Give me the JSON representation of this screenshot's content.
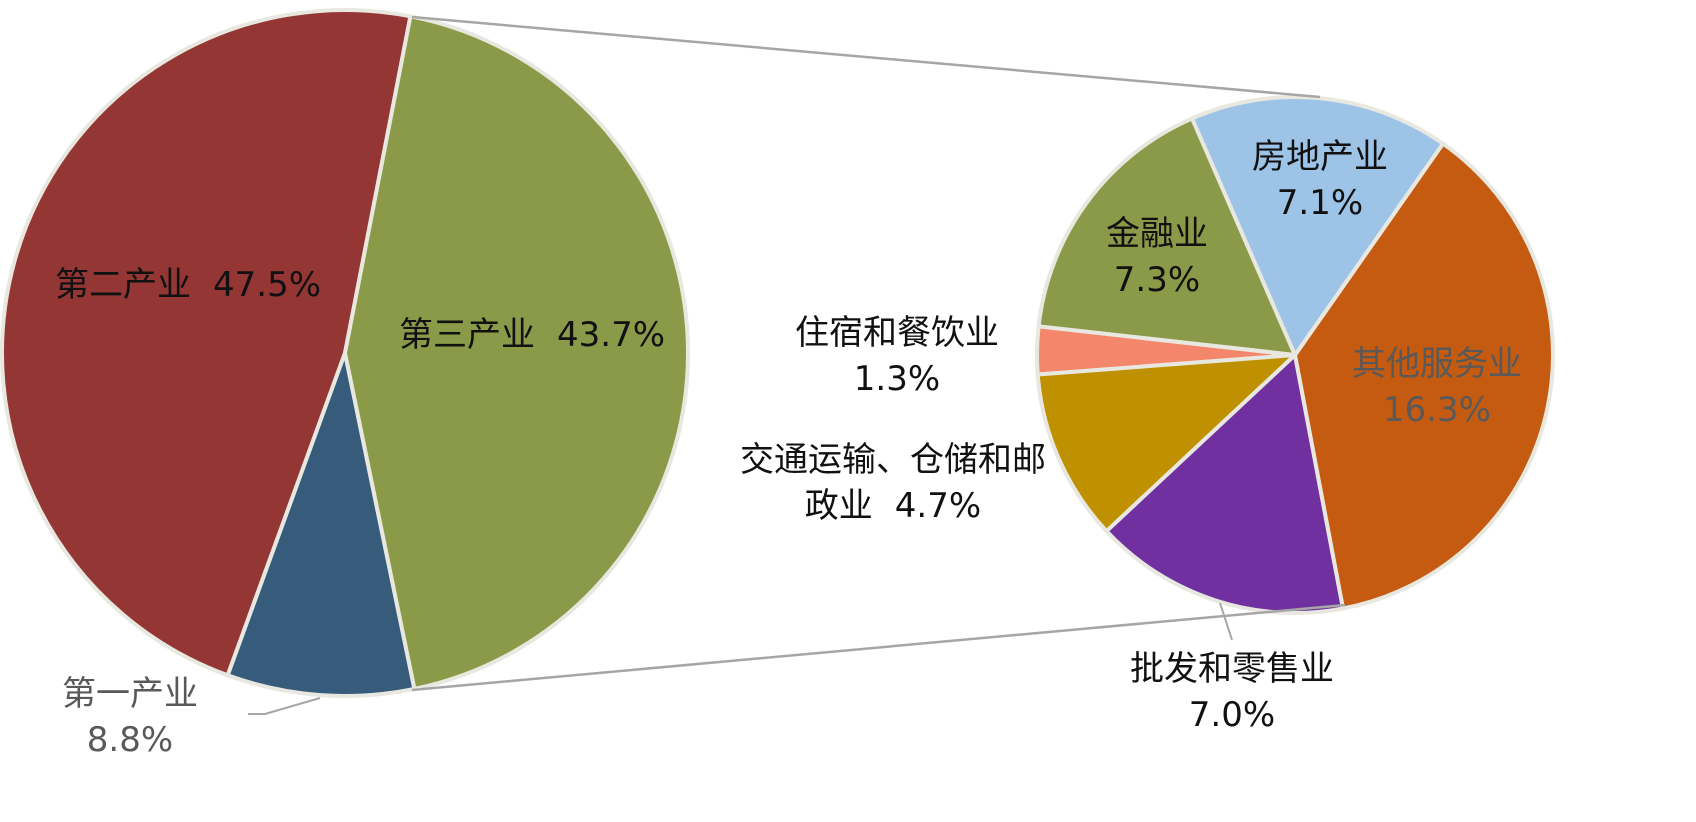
{
  "chart_data": [
    {
      "type": "pie",
      "categories": [
        "第三产业",
        "第一产业",
        "第二产业"
      ],
      "values": [
        43.7,
        8.8,
        47.5
      ],
      "value_labels": [
        "43.7%",
        "8.8%",
        "47.5%"
      ],
      "colors": [
        "#8a9a48",
        "#375b7b",
        "#943634"
      ]
    },
    {
      "type": "pie",
      "categories": [
        "房地产业",
        "其他服务业",
        "批发和零售业",
        "交通运输、仓储和邮政业",
        "住宿和餐饮业",
        "金融业"
      ],
      "values": [
        7.1,
        16.3,
        7.0,
        4.7,
        1.3,
        7.3
      ],
      "value_labels": [
        "7.1%",
        "16.3%",
        "7.0%",
        "4.7%",
        "1.3%",
        "7.3%"
      ],
      "colors": [
        "#9dc3e6",
        "#c55a11",
        "#7030a0",
        "#bf9000",
        "#f4876b",
        "#8a9a48"
      ]
    }
  ]
}
